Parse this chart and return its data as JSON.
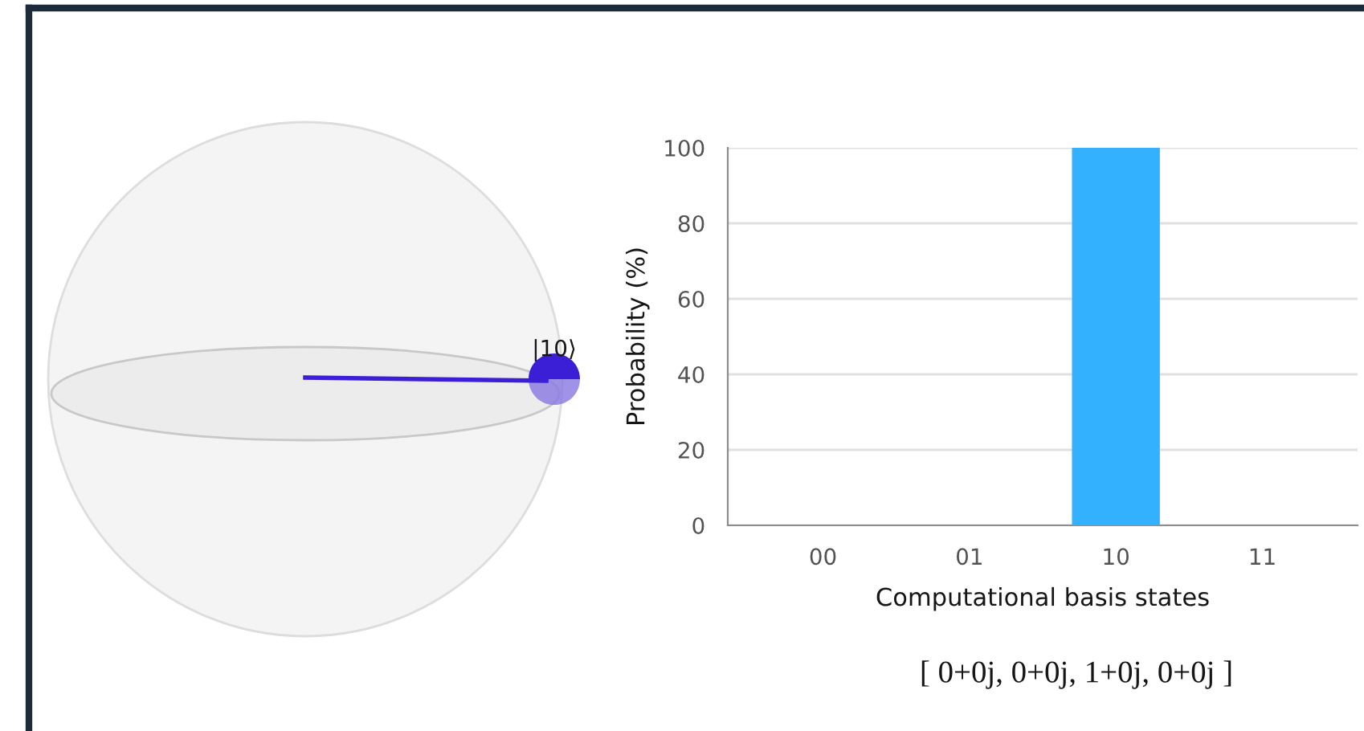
{
  "chart_data": {
    "type": "bar",
    "categories": [
      "00",
      "01",
      "10",
      "11"
    ],
    "values": [
      0,
      0,
      100,
      0
    ],
    "color": "#33b1ff",
    "xlabel": "Computational basis states",
    "ylabel": "Probability (%)",
    "ylim": [
      0,
      100
    ],
    "yticks": [
      0,
      20,
      40,
      60,
      80,
      100
    ],
    "grid": "y",
    "annotations": [
      "|10⟩",
      "[ 0+0j, 0+0j, 1+0j, 0+0j ]"
    ]
  }
}
